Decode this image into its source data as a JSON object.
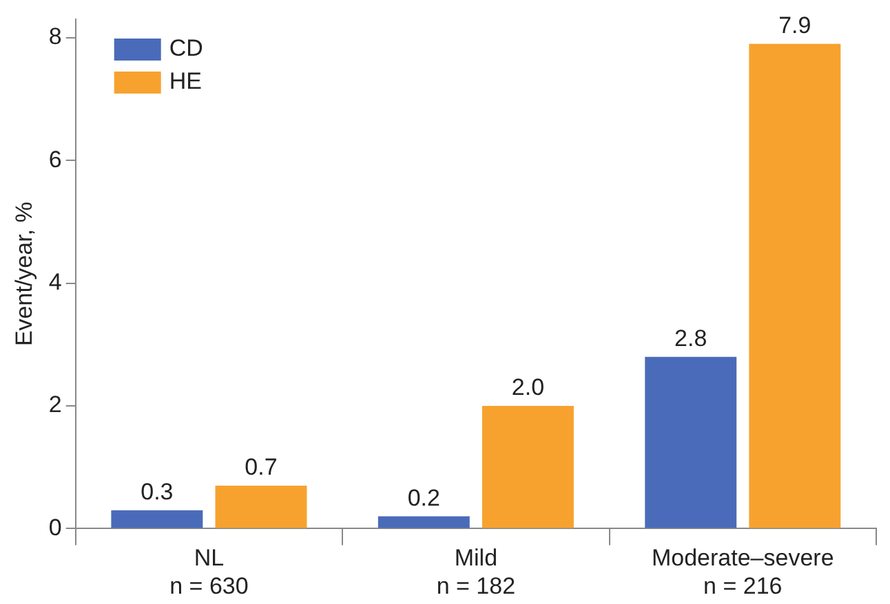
{
  "chart_data": {
    "type": "bar",
    "ylabel": "Event/year, %",
    "categories": [
      "NL\nn = 630",
      "Mild\nn = 182",
      "Moderate–severe\nn = 216"
    ],
    "series": [
      {
        "name": "CD",
        "color": "#4a6bb9",
        "values": [
          0.3,
          0.2,
          2.8
        ],
        "value_labels": [
          "0.3",
          "0.2",
          "2.8"
        ]
      },
      {
        "name": "HE",
        "color": "#f7a22f",
        "values": [
          0.7,
          2.0,
          7.9
        ],
        "value_labels": [
          "0.7",
          "2.0",
          "7.9"
        ]
      }
    ],
    "ylim": [
      0,
      8.3
    ],
    "yticks": [
      0,
      2,
      4,
      6,
      8
    ],
    "grid": false,
    "legend": "top left"
  }
}
